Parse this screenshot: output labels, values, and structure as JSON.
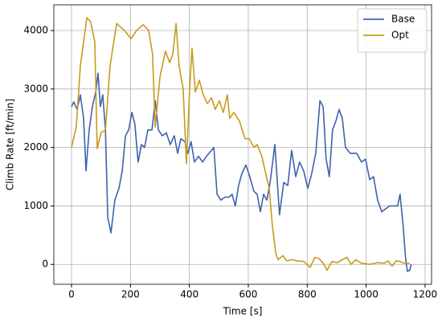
{
  "chart_data": {
    "type": "line",
    "xlabel": "Time [s]",
    "ylabel": "Climb Rate [ft/min]",
    "xlim": [
      -60,
      1222
    ],
    "ylim": [
      -340,
      4440
    ],
    "xticks": [
      0,
      200,
      400,
      600,
      800,
      1000,
      1200
    ],
    "yticks": [
      0,
      1000,
      2000,
      3000,
      4000
    ],
    "grid": true,
    "legend": "upper right",
    "series": [
      {
        "name": "Base",
        "color": "#3f62ad",
        "x": [
          0,
          8,
          19,
          30,
          41,
          49,
          60,
          71,
          82,
          90,
          98,
          106,
          115,
          123,
          134,
          147,
          161,
          172,
          183,
          194,
          205,
          215,
          226,
          237,
          248,
          259,
          273,
          284,
          295,
          308,
          322,
          335,
          349,
          360,
          371,
          385,
          395,
          406,
          417,
          431,
          445,
          458,
          475,
          483,
          494,
          507,
          521,
          535,
          545,
          556,
          567,
          578,
          592,
          605,
          619,
          630,
          641,
          652,
          663,
          674,
          690,
          706,
          720,
          734,
          747,
          761,
          774,
          788,
          802,
          815,
          829,
          843,
          854,
          864,
          875,
          886,
          897,
          908,
          919,
          930,
          946,
          968,
          984,
          998,
          1012,
          1025,
          1039,
          1053,
          1066,
          1080,
          1094,
          1107,
          1115,
          1125,
          1134,
          1140,
          1148,
          1153
        ],
        "values": [
          2700,
          2780,
          2650,
          2900,
          2500,
          1600,
          2300,
          2700,
          2950,
          3270,
          2700,
          2900,
          2300,
          800,
          540,
          1100,
          1300,
          1600,
          2200,
          2300,
          2600,
          2400,
          1750,
          2050,
          2000,
          2300,
          2300,
          2800,
          2300,
          2200,
          2250,
          2050,
          2200,
          1900,
          2150,
          2100,
          1900,
          2100,
          1750,
          1850,
          1750,
          1850,
          1950,
          2000,
          1200,
          1100,
          1150,
          1150,
          1200,
          1000,
          1350,
          1550,
          1700,
          1500,
          1250,
          1200,
          900,
          1200,
          1100,
          1400,
          2050,
          850,
          1400,
          1350,
          1950,
          1500,
          1750,
          1600,
          1300,
          1550,
          1900,
          2800,
          2700,
          1800,
          1500,
          2300,
          2450,
          2650,
          2500,
          2000,
          1900,
          1900,
          1750,
          1800,
          1450,
          1500,
          1100,
          900,
          950,
          1000,
          1000,
          1000,
          1200,
          700,
          100,
          -120,
          -100,
          0
        ]
      },
      {
        "name": "Opt",
        "color": "#c89a1e",
        "x": [
          0,
          16,
          30,
          52,
          65,
          79,
          87,
          100,
          115,
          131,
          153,
          180,
          202,
          221,
          243,
          262,
          275,
          284,
          300,
          319,
          333,
          344,
          355,
          365,
          379,
          390,
          401,
          409,
          420,
          434,
          447,
          461,
          475,
          488,
          502,
          515,
          529,
          537,
          551,
          570,
          589,
          603,
          619,
          630,
          646,
          657,
          671,
          682,
          693,
          701,
          717,
          731,
          747,
          766,
          788,
          810,
          826,
          840,
          854,
          867,
          884,
          903,
          919,
          935,
          949,
          965,
          984,
          1012,
          1039,
          1061,
          1074,
          1088,
          1102,
          1115,
          1129,
          1148
        ],
        "values": [
          2000,
          2350,
          3400,
          4220,
          4150,
          3800,
          1980,
          2250,
          2300,
          3400,
          4120,
          4000,
          3860,
          4000,
          4100,
          4000,
          3600,
          2350,
          3200,
          3650,
          3450,
          3600,
          4120,
          3400,
          3000,
          1720,
          3000,
          3700,
          2950,
          3150,
          2900,
          2750,
          2850,
          2650,
          2800,
          2600,
          2900,
          2500,
          2600,
          2450,
          2150,
          2150,
          2000,
          2050,
          1850,
          1600,
          1300,
          650,
          200,
          80,
          150,
          60,
          80,
          60,
          50,
          -50,
          120,
          100,
          20,
          -100,
          50,
          30,
          80,
          120,
          0,
          80,
          20,
          0,
          30,
          20,
          60,
          -30,
          60,
          50,
          20,
          20
        ]
      }
    ]
  }
}
